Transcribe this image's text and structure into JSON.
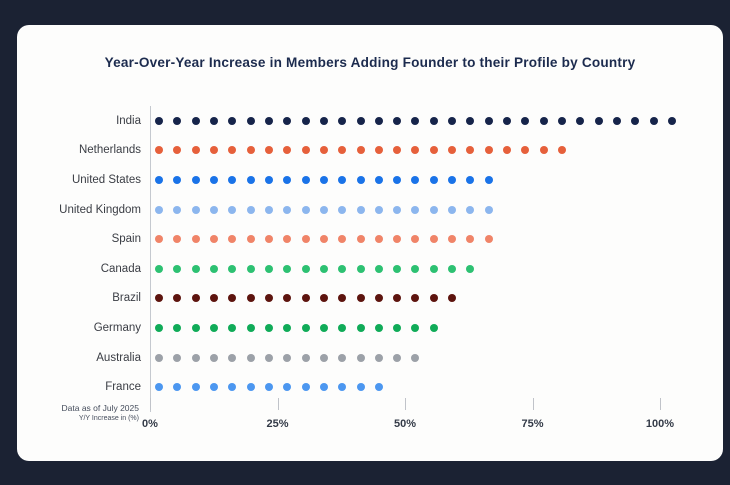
{
  "page": {
    "background_color": "#1b2233",
    "card_color": "#fdfdfc"
  },
  "footnote": {
    "line1": "Data as of July 2025",
    "line2": "Y/Y Increase in (%)"
  },
  "chart_data": {
    "type": "bar",
    "style": "dot-bar",
    "title": "Year-Over-Year Increase in Members Adding Founder to their Profile by Country",
    "xlabel": "Y/Y Increase in (%)",
    "ylabel": "",
    "note": "Data as of July 2025",
    "x_tick_labels": [
      "0%",
      "25%",
      "50%",
      "75%",
      "100%"
    ],
    "x_tick_values": [
      0,
      25,
      50,
      75,
      100
    ],
    "xlim": [
      0,
      110
    ],
    "grid": false,
    "legend": false,
    "categories": [
      "India",
      "Netherlands",
      "United States",
      "United Kingdom",
      "Spain",
      "Canada",
      "Brazil",
      "Germany",
      "Australia",
      "France"
    ],
    "values_pct": [
      102,
      81,
      67,
      67,
      67,
      63,
      59,
      56,
      52,
      45
    ],
    "series": [
      {
        "country": "India",
        "dots": 29,
        "value_pct": 102,
        "color": "#16244a"
      },
      {
        "country": "Netherlands",
        "dots": 23,
        "value_pct": 81,
        "color": "#e6603b"
      },
      {
        "country": "United States",
        "dots": 19,
        "value_pct": 67,
        "color": "#1a73e8"
      },
      {
        "country": "United Kingdom",
        "dots": 19,
        "value_pct": 67,
        "color": "#8cb6ee"
      },
      {
        "country": "Spain",
        "dots": 19,
        "value_pct": 67,
        "color": "#f08468"
      },
      {
        "country": "Canada",
        "dots": 18,
        "value_pct": 63,
        "color": "#2dc172"
      },
      {
        "country": "Brazil",
        "dots": 17,
        "value_pct": 59,
        "color": "#5d140e"
      },
      {
        "country": "Germany",
        "dots": 16,
        "value_pct": 56,
        "color": "#10ab58"
      },
      {
        "country": "Australia",
        "dots": 15,
        "value_pct": 52,
        "color": "#9ca1a8"
      },
      {
        "country": "France",
        "dots": 13,
        "value_pct": 45,
        "color": "#4c97f0"
      }
    ]
  }
}
